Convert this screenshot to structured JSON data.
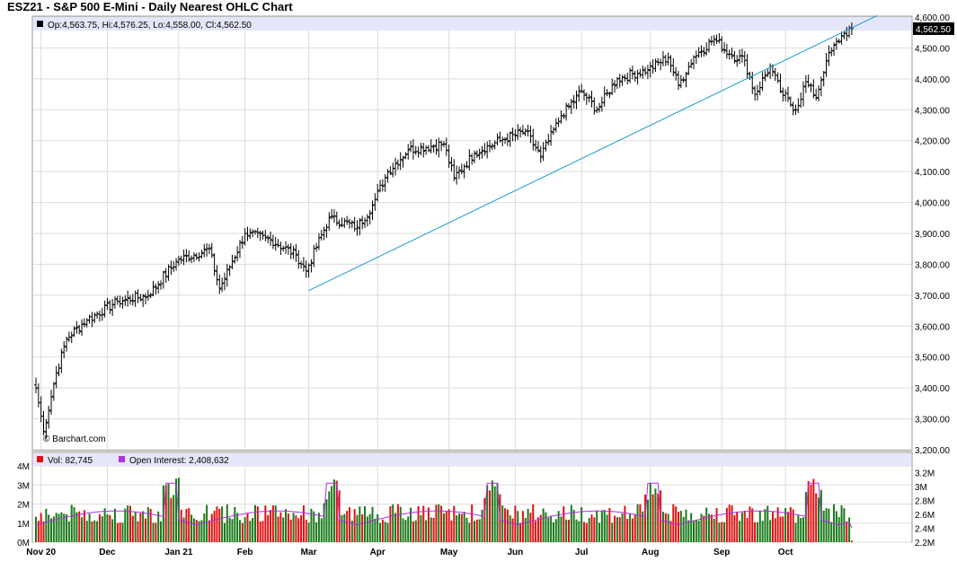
{
  "header": {
    "title": "ESZ21 - S&P 500 E-Mini - Daily Nearest OHLC Chart"
  },
  "price_info": {
    "ohlc_label": "Op:4,563.75, Hi:4,576.25, Lo:4,558.00, Cl:4,562.50",
    "last_price": "4,562.50",
    "watermark": "© Barchart.com"
  },
  "volume_info": {
    "vol_label": "Vol: 82,745",
    "oi_label": "Open Interest: 2,408,632"
  },
  "colors": {
    "bar": "#000000",
    "trendline": "#1a9bd0",
    "grid": "#dcdcdc",
    "info_bg": "#e6e6fa",
    "vol_up": "#1a7a1a",
    "vol_down": "#e01010",
    "open_interest": "#b030e0"
  },
  "chart_data": [
    {
      "type": "ohlc",
      "title": "ESZ21 - S&P 500 E-Mini - Daily Nearest OHLC Chart",
      "y_ticks": [
        "4,600.00",
        "4,500.00",
        "4,400.00",
        "4,300.00",
        "4,200.00",
        "4,100.00",
        "4,000.00",
        "3,900.00",
        "3,800.00",
        "3,700.00",
        "3,600.00",
        "3,500.00",
        "3,400.00",
        "3,300.00",
        "3,200.00"
      ],
      "ylim": [
        3200,
        4600
      ],
      "x_labels": [
        "Nov 20",
        "Dec",
        "Jan 21",
        "Feb",
        "Mar",
        "Apr",
        "May",
        "Jun",
        "Jul",
        "Aug",
        "Sep",
        "Oct"
      ],
      "grid": true,
      "anchors": [
        {
          "i": 0,
          "close": 3400
        },
        {
          "i": 3,
          "close": 3260
        },
        {
          "i": 8,
          "close": 3450
        },
        {
          "i": 12,
          "close": 3560
        },
        {
          "i": 20,
          "close": 3620
        },
        {
          "i": 32,
          "close": 3680
        },
        {
          "i": 44,
          "close": 3700
        },
        {
          "i": 55,
          "close": 3810
        },
        {
          "i": 68,
          "close": 3850
        },
        {
          "i": 72,
          "close": 3720
        },
        {
          "i": 82,
          "close": 3900
        },
        {
          "i": 92,
          "close": 3880
        },
        {
          "i": 102,
          "close": 3830
        },
        {
          "i": 106,
          "close": 3780
        },
        {
          "i": 115,
          "close": 3950
        },
        {
          "i": 126,
          "close": 3920
        },
        {
          "i": 132,
          "close": 3990
        },
        {
          "i": 138,
          "close": 4100
        },
        {
          "i": 146,
          "close": 4170
        },
        {
          "i": 160,
          "close": 4190
        },
        {
          "i": 164,
          "close": 4080
        },
        {
          "i": 172,
          "close": 4160
        },
        {
          "i": 182,
          "close": 4200
        },
        {
          "i": 192,
          "close": 4230
        },
        {
          "i": 198,
          "close": 4150
        },
        {
          "i": 206,
          "close": 4280
        },
        {
          "i": 214,
          "close": 4360
        },
        {
          "i": 220,
          "close": 4300
        },
        {
          "i": 228,
          "close": 4400
        },
        {
          "i": 240,
          "close": 4430
        },
        {
          "i": 248,
          "close": 4470
        },
        {
          "i": 252,
          "close": 4380
        },
        {
          "i": 258,
          "close": 4470
        },
        {
          "i": 266,
          "close": 4530
        },
        {
          "i": 272,
          "close": 4480
        },
        {
          "i": 278,
          "close": 4460
        },
        {
          "i": 282,
          "close": 4350
        },
        {
          "i": 288,
          "close": 4440
        },
        {
          "i": 292,
          "close": 4360
        },
        {
          "i": 298,
          "close": 4300
        },
        {
          "i": 302,
          "close": 4390
        },
        {
          "i": 306,
          "close": 4340
        },
        {
          "i": 310,
          "close": 4460
        },
        {
          "i": 316,
          "close": 4540
        },
        {
          "i": 320,
          "close": 4562.5
        }
      ],
      "trendline": {
        "from": {
          "x_index": 107,
          "y": 3715
        },
        "to": {
          "x_index": 330,
          "y": 4605
        }
      }
    },
    {
      "type": "bar",
      "series": [
        {
          "name": "Vol",
          "value": 82745
        },
        {
          "name": "Open Interest",
          "value": 2408632
        }
      ],
      "y_ticks_left": [
        "4M",
        "3M",
        "2M",
        "1M",
        "0M"
      ],
      "ylim_left": [
        0,
        4000000
      ],
      "y_ticks_right": [
        "3.2M",
        "3M",
        "2.8M",
        "2.6M",
        "2.4M",
        "2.2M"
      ],
      "ylim_right": [
        2200000,
        3300000
      ],
      "x_labels": [
        "Nov 20",
        "Dec",
        "Jan 21",
        "Feb",
        "Mar",
        "Apr",
        "May",
        "Jun",
        "Jul",
        "Aug",
        "Sep",
        "Oct"
      ]
    }
  ]
}
